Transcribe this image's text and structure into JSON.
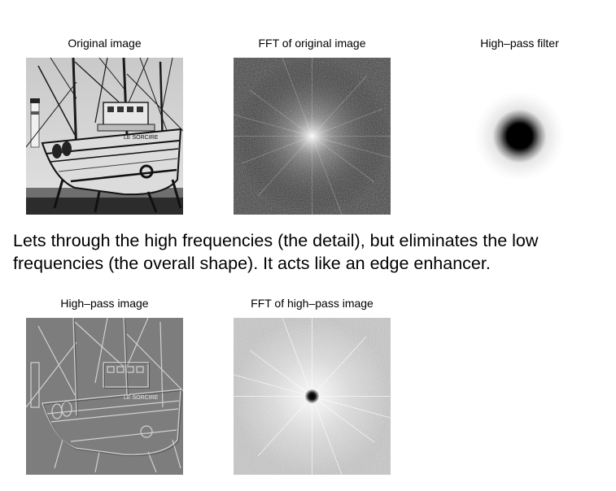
{
  "panels": {
    "original": {
      "caption": "Original image",
      "icon": "boat-photo"
    },
    "fft_original": {
      "caption": "FFT of original image",
      "icon": "fft-spectrum"
    },
    "filter": {
      "caption": "High–pass filter",
      "icon": "dark-disc"
    },
    "highpass": {
      "caption": "High–pass image",
      "icon": "edge-boat-photo"
    },
    "fft_highpass": {
      "caption": "FFT of high–pass image",
      "icon": "fft-spectrum-dark-center"
    }
  },
  "description": "Lets through the high frequencies (the detail), but eliminates the low frequencies (the overall shape). It acts like an edge enhancer.",
  "boat_label": "LE SORCIRE"
}
